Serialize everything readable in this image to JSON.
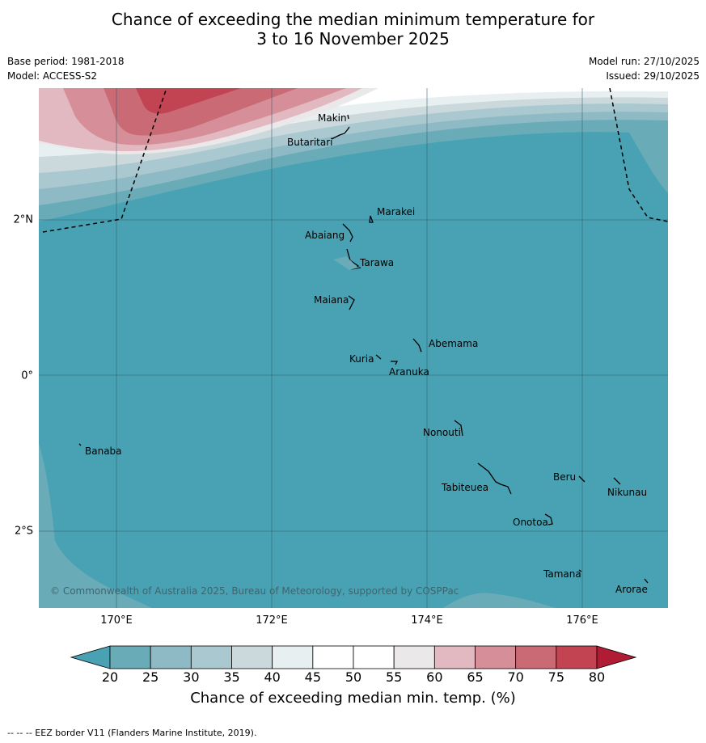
{
  "header": {
    "title_line1": "Chance of exceeding the median minimum temperature for",
    "title_line2": "3 to 16 November 2025",
    "base_period": "Base period: 1981-2018",
    "model": "Model: ACCESS-S2",
    "model_run": "Model run: 27/10/2025",
    "issued": "Issued: 29/10/2025"
  },
  "map": {
    "lat_labels": [
      "2°N",
      "0°",
      "2°S"
    ],
    "lon_labels": [
      "170°E",
      "172°E",
      "174°E",
      "176°E"
    ],
    "places": [
      "Makin",
      "Butaritari",
      "Marakei",
      "Abaiang",
      "Tarawa",
      "Maiana",
      "Abemama",
      "Kuria",
      "Aranuka",
      "Nonouti",
      "Banaba",
      "Beru",
      "Nikunau",
      "Tabiteuea",
      "Onotoa",
      "Tamana",
      "Arorae"
    ],
    "copyright": "© Commonwealth of Australia 2025, Bureau of Meteorology, supported by COSPPac"
  },
  "colorbar": {
    "ticks": [
      "20",
      "25",
      "30",
      "35",
      "40",
      "45",
      "50",
      "55",
      "60",
      "65",
      "70",
      "75",
      "80"
    ],
    "colors": [
      "#6aabb8",
      "#8dbac5",
      "#aac8cf",
      "#cbd9dd",
      "#e8eff1",
      "#ffffff",
      "#ffffff",
      "#ebe8e9",
      "#e2b9c0",
      "#d68f98",
      "#c96a75",
      "#c24352"
    ],
    "under_color": "#49a2b3",
    "over_color": "#b01c34",
    "label": "Chance of exceeding median min. temp. (%)"
  },
  "footnote": "--  --  -- EEZ border V11 (Flanders Marine Institute, 2019)."
}
